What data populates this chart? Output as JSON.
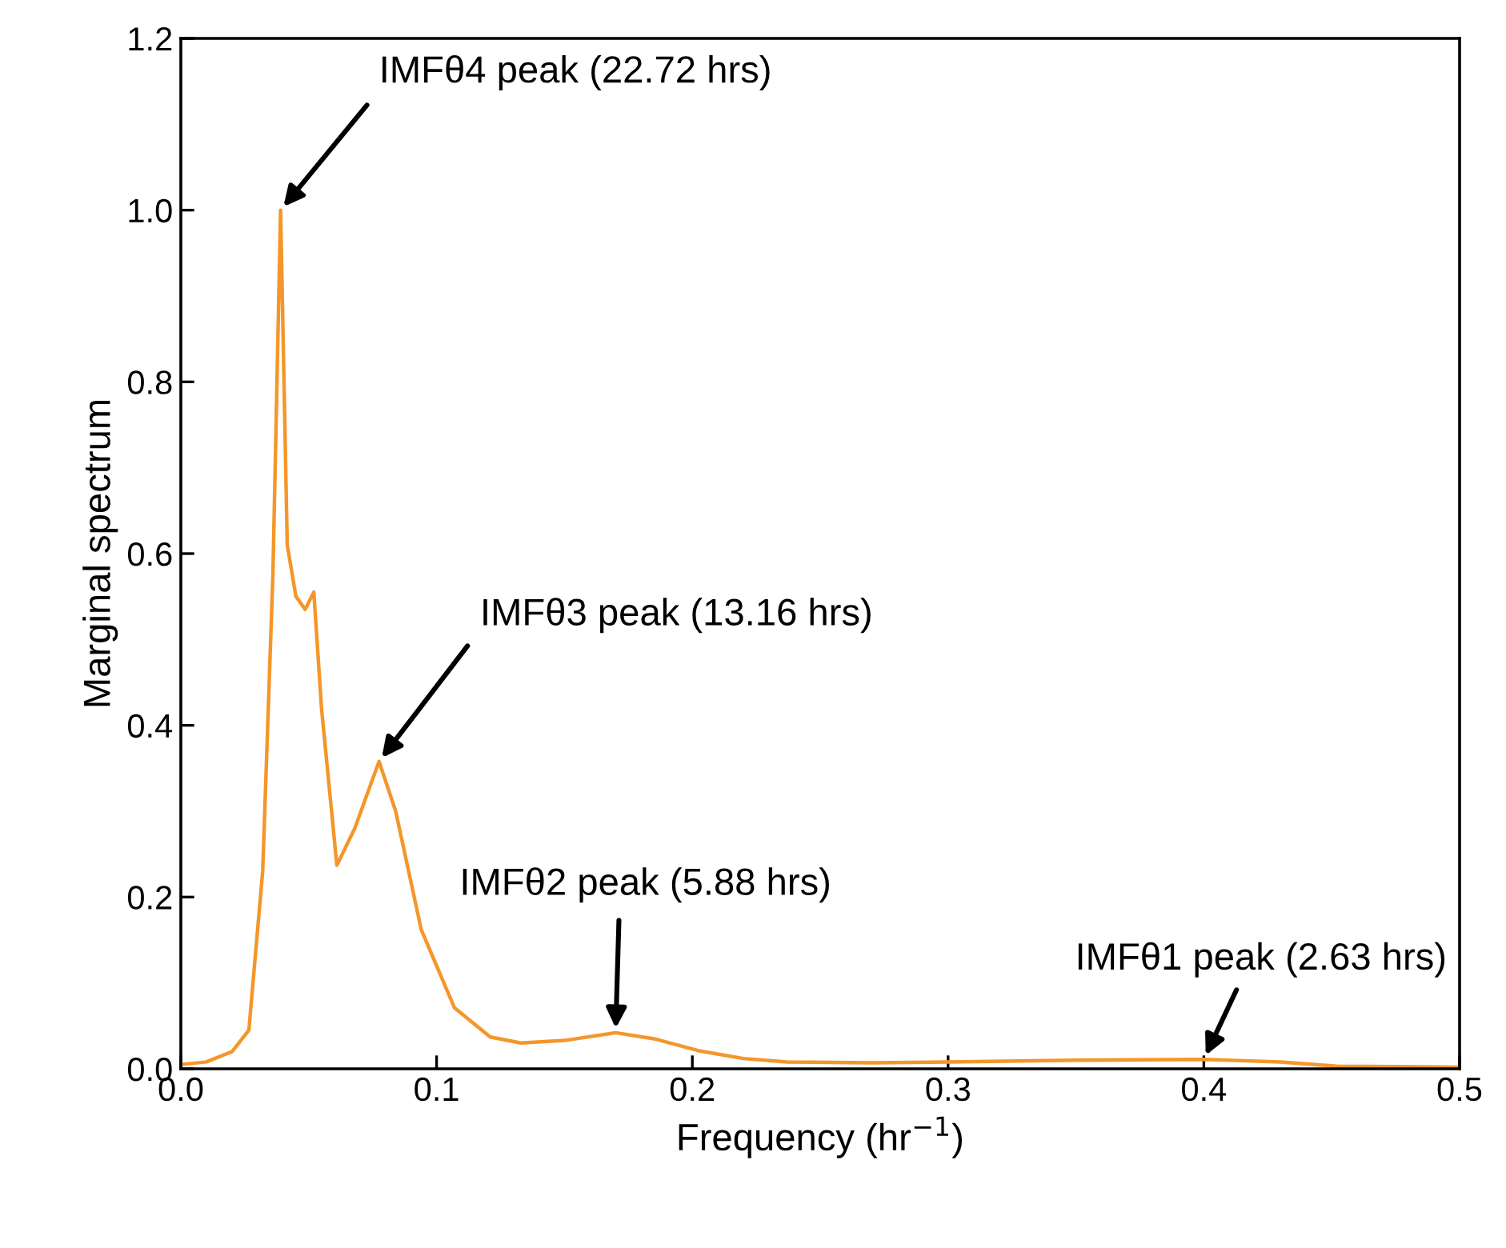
{
  "chart_data": {
    "type": "line",
    "xlabel": "Frequency (hr$^{−1}$)",
    "ylabel": "Marginal spectrum",
    "xlim": [
      0,
      0.5
    ],
    "ylim": [
      0,
      1.2
    ],
    "xticks": [
      {
        "value": 0,
        "label": "0.0"
      },
      0.1,
      0.2,
      0.3,
      0.4,
      0.5
    ],
    "yticks": [
      {
        "value": 0,
        "label": "0.0"
      },
      0.2,
      0.4,
      0.6,
      0.8,
      {
        "value": 1.0,
        "label": "1.0"
      },
      1.2
    ],
    "grid": false,
    "legend": false,
    "marker": "none",
    "line_style": "solid",
    "series": [
      {
        "color": "#f5962a",
        "x": [
          0,
          0.01,
          0.02,
          0.0266,
          0.032,
          0.036,
          0.039,
          0.0416,
          0.045,
          0.0486,
          0.052,
          0.055,
          0.061,
          0.068,
          0.0775,
          0.084,
          0.094,
          0.107,
          0.121,
          0.133,
          0.15,
          0.17,
          0.185,
          0.2025,
          0.22,
          0.237,
          0.27,
          0.3,
          0.35,
          0.4,
          0.43,
          0.452,
          0.5
        ],
        "values": [
          0.005,
          0.008,
          0.02,
          0.045,
          0.23,
          0.576,
          1.0,
          0.61,
          0.55,
          0.535,
          0.555,
          0.42,
          0.237,
          0.28,
          0.358,
          0.3,
          0.162,
          0.071,
          0.037,
          0.03,
          0.033,
          0.042,
          0.035,
          0.021,
          0.012,
          0.008,
          0.007,
          0.008,
          0.01,
          0.011,
          0.008,
          0.003,
          0.002
        ]
      }
    ],
    "annotations": [
      {
        "text": "IMFθ4 peak (22.72 hrs)",
        "x": 0.039,
        "y": 1.0
      },
      {
        "text": "IMFθ3 peak (13.16 hrs)",
        "x": 0.0775,
        "y": 0.358
      },
      {
        "text": "IMFθ2 peak (5.88 hrs)",
        "x": 0.17,
        "y": 0.042
      },
      {
        "text": "IMFθ1 peak (2.63 hrs)",
        "x": 0.4,
        "y": 0.011
      }
    ]
  }
}
